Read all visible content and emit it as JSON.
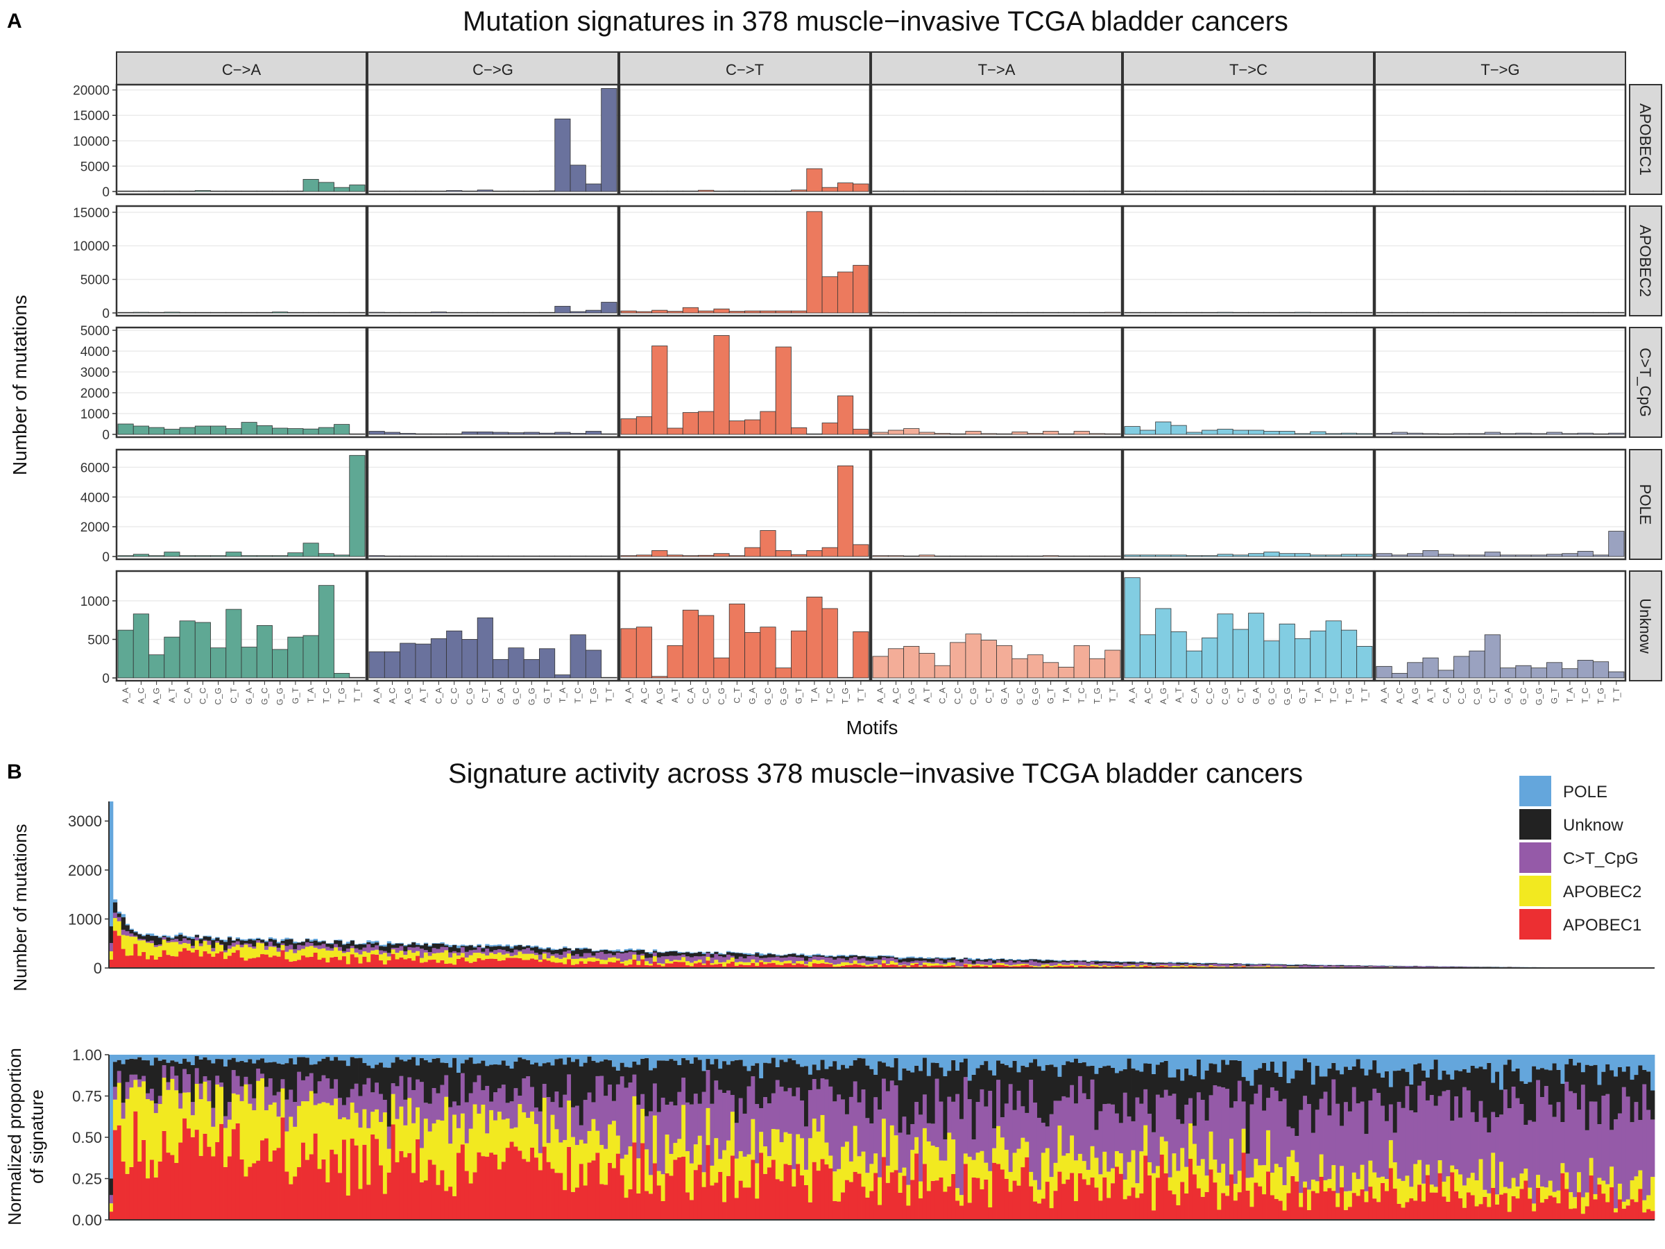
{
  "panel_a": {
    "letter": "A",
    "title": "Mutation signatures in 378 muscle−invasive TCGA bladder cancers",
    "ylabel": "Number of mutations",
    "xlabel": "Motifs",
    "columns": [
      "C−>A",
      "C−>G",
      "C−>T",
      "T−>A",
      "T−>C",
      "T−>G"
    ],
    "rows": [
      "APOBEC1",
      "APOBEC2",
      "C>T_CpG",
      "POLE",
      "Unknow"
    ],
    "motifs": [
      "A_A",
      "A_C",
      "A_G",
      "A_T",
      "C_A",
      "C_C",
      "C_G",
      "C_T",
      "G_A",
      "G_C",
      "G_G",
      "G_T",
      "T_A",
      "T_C",
      "T_G",
      "T_T"
    ],
    "row_ticks": [
      [
        0,
        5000,
        10000,
        15000,
        20000
      ],
      [
        0,
        5000,
        10000,
        15000
      ],
      [
        0,
        1000,
        2000,
        3000,
        4000,
        5000
      ],
      [
        0,
        2000,
        4000,
        6000
      ],
      [
        0,
        500,
        1000
      ]
    ],
    "row_ylim": [
      [
        0,
        20500
      ],
      [
        0,
        15500
      ],
      [
        0,
        5000
      ],
      [
        0,
        7000
      ],
      [
        0,
        1350
      ]
    ],
    "column_colors": [
      "#5fa894",
      "#6a729d",
      "#ec7a5e",
      "#f3ad98",
      "#82cde2",
      "#9aa2c0"
    ],
    "chart_data": {
      "type": "bar",
      "categories": [
        "A_A",
        "A_C",
        "A_G",
        "A_T",
        "C_A",
        "C_C",
        "C_G",
        "C_T",
        "G_A",
        "G_C",
        "G_G",
        "G_T",
        "T_A",
        "T_C",
        "T_G",
        "T_T"
      ],
      "grid": [
        [
          [
            60,
            80,
            60,
            120,
            80,
            200,
            60,
            90,
            50,
            60,
            50,
            100,
            2400,
            1800,
            800,
            1300
          ],
          [
            60,
            80,
            40,
            60,
            80,
            200,
            100,
            300,
            60,
            80,
            60,
            150,
            14300,
            5200,
            1500,
            20300
          ],
          [
            60,
            80,
            60,
            100,
            100,
            250,
            80,
            100,
            60,
            80,
            80,
            300,
            4500,
            800,
            1700,
            1500
          ],
          [
            60,
            40,
            60,
            50,
            80,
            40,
            40,
            60,
            40,
            50,
            40,
            60,
            60,
            40,
            60,
            60
          ],
          [
            60,
            40,
            40,
            40,
            40,
            60,
            40,
            100,
            40,
            40,
            40,
            40,
            40,
            60,
            40,
            80
          ],
          [
            40,
            40,
            40,
            40,
            60,
            40,
            40,
            40,
            40,
            40,
            40,
            80,
            40,
            40,
            100,
            40
          ]
        ],
        [
          [
            60,
            100,
            60,
            120,
            60,
            60,
            60,
            60,
            60,
            60,
            150,
            60,
            80,
            60,
            60,
            60
          ],
          [
            100,
            60,
            40,
            60,
            150,
            60,
            60,
            80,
            40,
            60,
            40,
            60,
            1000,
            200,
            400,
            1600
          ],
          [
            300,
            200,
            400,
            250,
            800,
            300,
            600,
            250,
            300,
            300,
            300,
            300,
            15100,
            5400,
            6100,
            7100
          ],
          [
            100,
            60,
            40,
            40,
            40,
            40,
            60,
            40,
            60,
            40,
            60,
            40,
            40,
            40,
            40,
            100
          ],
          [
            80,
            60,
            40,
            60,
            40,
            40,
            100,
            40,
            60,
            40,
            40,
            100,
            40,
            60,
            40,
            40
          ],
          [
            40,
            40,
            40,
            40,
            40,
            40,
            40,
            40,
            40,
            40,
            40,
            40,
            40,
            40,
            40,
            40
          ]
        ],
        [
          [
            500,
            400,
            330,
            250,
            330,
            400,
            400,
            280,
            580,
            420,
            300,
            280,
            260,
            330,
            480,
            0
          ],
          [
            150,
            100,
            50,
            30,
            30,
            30,
            120,
            120,
            100,
            80,
            100,
            60,
            100,
            50,
            150,
            30
          ],
          [
            750,
            850,
            4250,
            300,
            1050,
            1100,
            4750,
            650,
            700,
            1100,
            4200,
            320,
            20,
            550,
            1850,
            250
          ],
          [
            100,
            200,
            280,
            100,
            50,
            30,
            150,
            40,
            30,
            120,
            50,
            150,
            30,
            150,
            40,
            30
          ],
          [
            380,
            200,
            600,
            430,
            100,
            200,
            250,
            200,
            200,
            150,
            150,
            40,
            130,
            40,
            60,
            40
          ],
          [
            50,
            100,
            60,
            40,
            30,
            40,
            40,
            100,
            40,
            60,
            40,
            100,
            40,
            60,
            30,
            60
          ]
        ],
        [
          [
            60,
            150,
            60,
            300,
            60,
            60,
            60,
            300,
            60,
            60,
            60,
            250,
            900,
            200,
            100,
            6800
          ],
          [
            60,
            40,
            40,
            40,
            40,
            40,
            40,
            40,
            40,
            40,
            40,
            40,
            40,
            40,
            40,
            40
          ],
          [
            60,
            100,
            400,
            100,
            60,
            80,
            200,
            60,
            600,
            1750,
            400,
            130,
            400,
            600,
            6100,
            800
          ],
          [
            60,
            60,
            40,
            100,
            40,
            40,
            40,
            40,
            40,
            40,
            40,
            60,
            40,
            40,
            40,
            40
          ],
          [
            100,
            100,
            100,
            100,
            60,
            60,
            150,
            100,
            200,
            300,
            200,
            200,
            100,
            100,
            150,
            150
          ],
          [
            200,
            100,
            200,
            400,
            150,
            100,
            100,
            300,
            100,
            100,
            100,
            150,
            200,
            350,
            100,
            1700
          ]
        ],
        [
          [
            620,
            830,
            300,
            530,
            740,
            720,
            390,
            890,
            400,
            680,
            370,
            530,
            550,
            1200,
            60,
            0
          ],
          [
            340,
            340,
            450,
            440,
            510,
            610,
            500,
            780,
            240,
            390,
            240,
            380,
            40,
            560,
            360,
            0
          ],
          [
            640,
            660,
            20,
            420,
            880,
            810,
            260,
            960,
            590,
            660,
            130,
            610,
            1050,
            900,
            0,
            600
          ],
          [
            280,
            380,
            410,
            320,
            160,
            460,
            570,
            490,
            420,
            250,
            300,
            200,
            140,
            420,
            250,
            360
          ],
          [
            1300,
            560,
            900,
            600,
            350,
            520,
            830,
            630,
            840,
            480,
            700,
            510,
            610,
            740,
            620,
            410
          ],
          [
            150,
            60,
            200,
            260,
            100,
            280,
            350,
            560,
            130,
            160,
            130,
            200,
            120,
            230,
            210,
            80
          ]
        ]
      ]
    }
  },
  "panel_b": {
    "letter": "B",
    "title": "Signature activity across 378 muscle−invasive TCGA bladder cancers",
    "top_ylabel": "Number of mutations",
    "top_ticks": [
      0,
      1000,
      2000,
      3000
    ],
    "bottom_ylabel_line1": "Normalized proportion",
    "bottom_ylabel_line2": "of signature",
    "bottom_ticks": [
      "0.00",
      "0.25",
      "0.50",
      "0.75",
      "1.00"
    ],
    "legend": [
      {
        "label": "POLE",
        "color": "#64a6dc"
      },
      {
        "label": "Unknow",
        "color": "#222222"
      },
      {
        "label": "C>T_CpG",
        "color": "#955aa8"
      },
      {
        "label": "APOBEC2",
        "color": "#f2e920"
      },
      {
        "label": "APOBEC1",
        "color": "#ec2f32"
      }
    ],
    "chart_data": {
      "type": "bar",
      "stacked": true,
      "samples": 378,
      "series_order_bottom_to_top": [
        "APOBEC1",
        "APOBEC2",
        "C>T_CpG",
        "Unknow",
        "POLE"
      ],
      "top_ylim": [
        0,
        3400
      ],
      "total_mutations_first_samples": [
        3400,
        1400,
        1150,
        1100,
        900,
        800,
        750,
        700
      ],
      "mean_proportion_trend": {
        "APOBEC1": [
          0.45,
          0.3,
          0.2,
          0.1
        ],
        "APOBEC2": [
          0.35,
          0.2,
          0.15,
          0.08
        ],
        "C>T_CpG": [
          0.05,
          0.25,
          0.35,
          0.5
        ],
        "Unknow": [
          0.12,
          0.2,
          0.22,
          0.22
        ],
        "POLE": [
          0.03,
          0.05,
          0.08,
          0.1
        ]
      }
    }
  }
}
